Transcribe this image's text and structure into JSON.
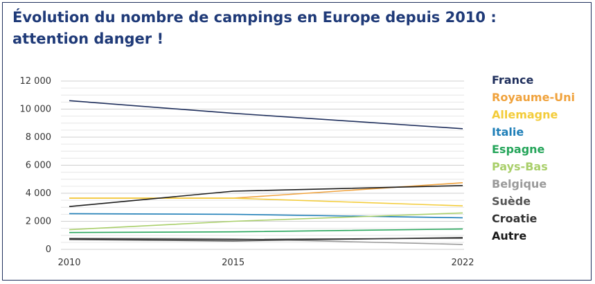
{
  "title": "Évolution du nombre de campings en Europe depuis 2010 : attention danger !",
  "chart_data": {
    "type": "line",
    "x": [
      2010,
      2015,
      2022
    ],
    "x_tick_labels": [
      "2010",
      "2015",
      "2022"
    ],
    "ylim": [
      0,
      12000
    ],
    "y_ticks": [
      0,
      2000,
      4000,
      6000,
      8000,
      10000,
      12000
    ],
    "y_tick_labels": [
      "0",
      "2 000",
      "4 000",
      "6 000",
      "8 000",
      "10 000",
      "12 000"
    ],
    "grid": true,
    "legend_position": "right",
    "series": [
      {
        "name": "France",
        "color": "#1f2f5c",
        "values": [
          10600,
          9700,
          8600
        ]
      },
      {
        "name": "Royaume-Uni",
        "color": "#f0a23c",
        "values": [
          3650,
          3650,
          4750
        ]
      },
      {
        "name": "Allemagne",
        "color": "#f3cc3a",
        "values": [
          3650,
          3650,
          3100
        ]
      },
      {
        "name": "Italie",
        "color": "#1f7fb8",
        "values": [
          2550,
          2500,
          2250
        ]
      },
      {
        "name": "Espagne",
        "color": "#25a55a",
        "values": [
          1200,
          1250,
          1450
        ]
      },
      {
        "name": "Pays-Bas",
        "color": "#a9cf6a",
        "values": [
          1400,
          2000,
          2600
        ]
      },
      {
        "name": "Belgique",
        "color": "#9a9a9a",
        "values": [
          800,
          750,
          350
        ]
      },
      {
        "name": "Suède",
        "color": "#555555",
        "values": [
          700,
          600,
          850
        ]
      },
      {
        "name": "Croatie",
        "color": "#333333",
        "values": [
          750,
          700,
          800
        ]
      },
      {
        "name": "Autre",
        "color": "#1a1a1a",
        "values": [
          3050,
          4150,
          4550
        ]
      }
    ]
  }
}
